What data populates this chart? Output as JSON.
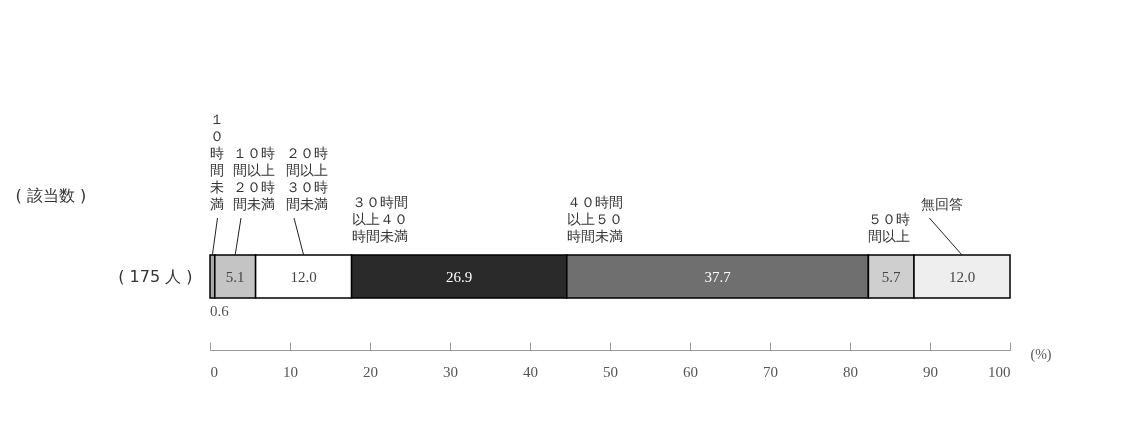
{
  "chart_data": {
    "type": "bar",
    "orientation": "horizontal",
    "stacked": true,
    "ylabel": "( 該当数 )",
    "xlabel": "(%)",
    "categories": [
      "(  175  人 )"
    ],
    "series": [
      {
        "name": "１０時間未満",
        "color": "#a8a8a8",
        "values": [
          0.6
        ],
        "value_labels": [
          "0.6"
        ]
      },
      {
        "name": "１０時間以上２０時間未満",
        "color": "#c4c4c4",
        "values": [
          5.1
        ],
        "value_labels": [
          "5.1"
        ]
      },
      {
        "name": "２０時間以上３０時間未満",
        "color": "#ffffff",
        "values": [
          12.0
        ],
        "value_labels": [
          "12.0"
        ]
      },
      {
        "name": "３０時間以上４０時間未満",
        "color": "#2a2a2a",
        "values": [
          26.9
        ],
        "value_labels": [
          "26.9"
        ]
      },
      {
        "name": "４０時間以上５０時間未満",
        "color": "#6f6f6f",
        "values": [
          37.7
        ],
        "value_labels": [
          "37.7"
        ]
      },
      {
        "name": "５０時間以上",
        "color": "#cfcfcf",
        "values": [
          5.7
        ],
        "value_labels": [
          "5.7"
        ]
      },
      {
        "name": "無回答",
        "color": "#eeeeee",
        "values": [
          12.0
        ],
        "value_labels": [
          "12.0"
        ]
      }
    ],
    "xlim": [
      0,
      100
    ],
    "xticks": [
      0,
      10,
      20,
      30,
      40,
      50,
      60,
      70,
      80,
      90,
      100
    ],
    "grid": false
  }
}
